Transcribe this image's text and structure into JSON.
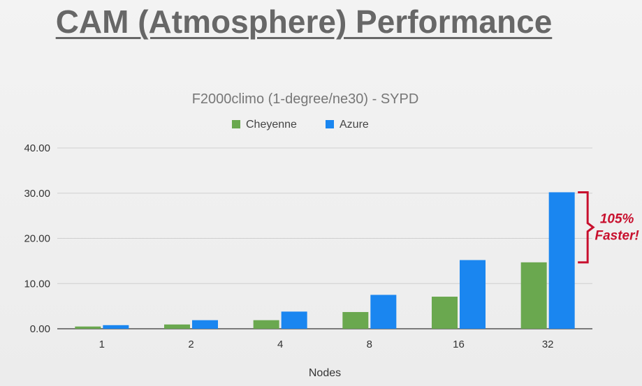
{
  "slide": {
    "title": "CAM (Atmosphere) Performance"
  },
  "chart_data": {
    "type": "bar",
    "title": "F2000climo (1-degree/ne30) - SYPD",
    "xlabel": "Nodes",
    "ylabel": "",
    "categories": [
      "1",
      "2",
      "4",
      "8",
      "16",
      "32"
    ],
    "series": [
      {
        "name": "Cheyenne",
        "color": "#6aa84f",
        "values": [
          0.5,
          0.95,
          1.9,
          3.7,
          7.1,
          14.7
        ]
      },
      {
        "name": "Azure",
        "color": "#1a86f0",
        "values": [
          0.8,
          1.9,
          3.8,
          7.5,
          15.2,
          30.2
        ]
      }
    ],
    "ylim": [
      0,
      40
    ],
    "yticks": [
      "0.00",
      "10.00",
      "20.00",
      "30.00",
      "40.00"
    ],
    "grid": true,
    "legend_position": "top-center",
    "annotation": {
      "lines": [
        "105%",
        "Faster!"
      ],
      "color": "#c8102e"
    }
  }
}
